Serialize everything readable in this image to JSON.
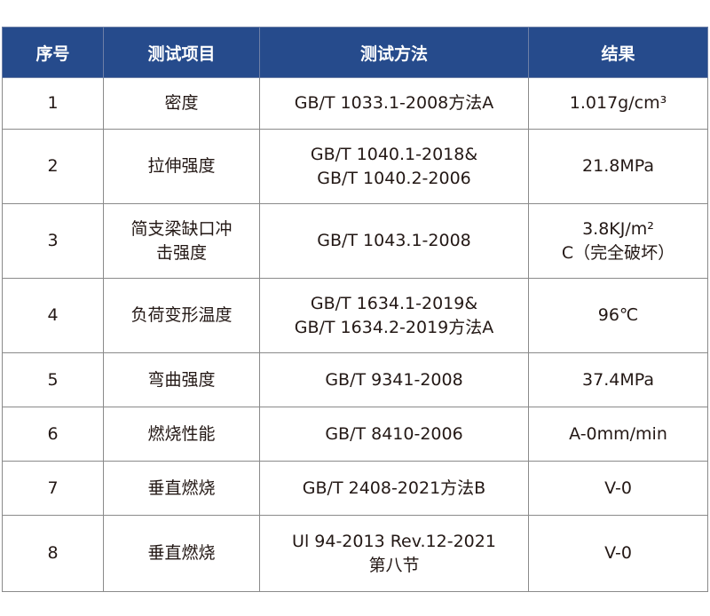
{
  "header_color": "#264b8c",
  "columns": [
    "序号",
    "测试项目",
    "测试方法",
    "结果"
  ],
  "rows": [
    {
      "no": "1",
      "item": "密度",
      "method": "GB/T 1033.1-2008方法A",
      "result": "1.017g/cm³"
    },
    {
      "no": "2",
      "item": "拉伸强度",
      "method": "GB/T 1040.1-2018&\nGB/T 1040.2-2006",
      "result": "21.8MPa"
    },
    {
      "no": "3",
      "item": "简支梁缺口冲\n击强度",
      "method": "GB/T 1043.1-2008",
      "result": "3.8KJ/m²\nC（完全破坏）"
    },
    {
      "no": "4",
      "item": "负荷变形温度",
      "method": "GB/T 1634.1-2019&\nGB/T 1634.2-2019方法A",
      "result": "96℃"
    },
    {
      "no": "5",
      "item": "弯曲强度",
      "method": "GB/T 9341-2008",
      "result": "37.4MPa"
    },
    {
      "no": "6",
      "item": "燃烧性能",
      "method": "GB/T 8410-2006",
      "result": "A-0mm/min"
    },
    {
      "no": "7",
      "item": "垂直燃烧",
      "method": "GB/T 2408-2021方法B",
      "result": "V-0"
    },
    {
      "no": "8",
      "item": "垂直燃烧",
      "method": "Ul 94-2013 Rev.12-2021\n第八节",
      "result": "V-0"
    }
  ]
}
